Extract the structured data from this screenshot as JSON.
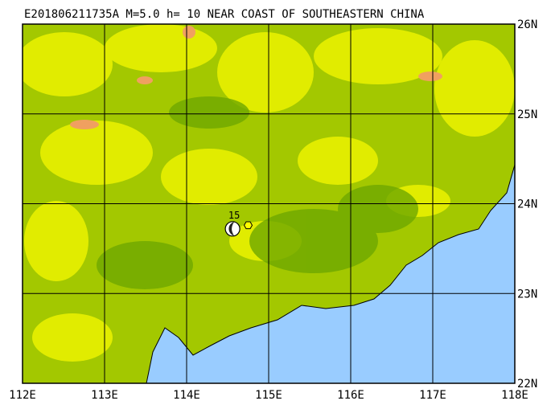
{
  "title": "E201806211735A M=5.0 h= 10 NEAR COAST OF SOUTHEASTERN CHINA",
  "map": {
    "xlim": [
      112,
      118
    ],
    "ylim": [
      22,
      26
    ],
    "xticks": [
      {
        "value": 112,
        "label": "112E"
      },
      {
        "value": 113,
        "label": "113E"
      },
      {
        "value": 114,
        "label": "114E"
      },
      {
        "value": 115,
        "label": "115E"
      },
      {
        "value": 116,
        "label": "116E"
      },
      {
        "value": 117,
        "label": "117E"
      },
      {
        "value": 118,
        "label": "118E"
      }
    ],
    "yticks": [
      {
        "value": 22,
        "label": "22N"
      },
      {
        "value": 23,
        "label": "23N"
      },
      {
        "value": 24,
        "label": "24N"
      },
      {
        "value": 25,
        "label": "25N"
      },
      {
        "value": 26,
        "label": "26N"
      }
    ],
    "event": {
      "label": "15",
      "lon": 114.56,
      "lat": 23.72
    },
    "station": {
      "lon": 114.75,
      "lat": 23.76
    }
  }
}
